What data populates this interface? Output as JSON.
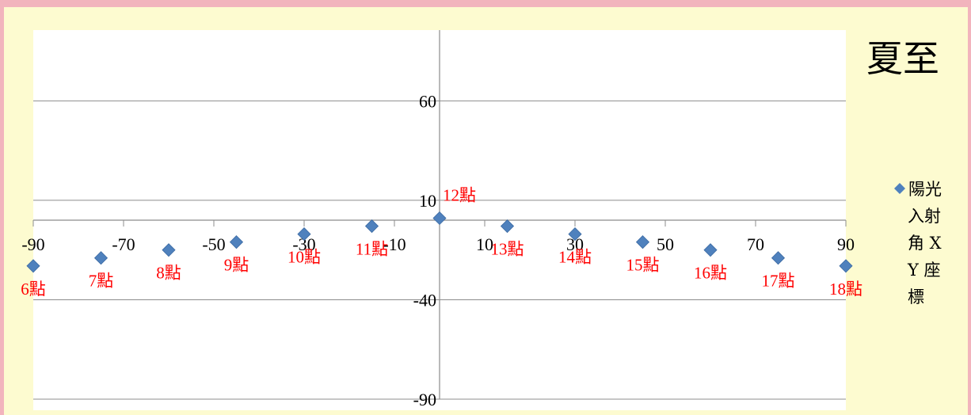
{
  "chart_data": {
    "type": "scatter",
    "title": "夏至",
    "series": [
      {
        "name": "陽光入射角XY座標",
        "points": [
          {
            "x": -90,
            "y": -23,
            "label": "6點"
          },
          {
            "x": -75,
            "y": -19,
            "label": "7點"
          },
          {
            "x": -60,
            "y": -15,
            "label": "8點"
          },
          {
            "x": -45,
            "y": -11,
            "label": "9點"
          },
          {
            "x": -30,
            "y": -7,
            "label": "10點"
          },
          {
            "x": -15,
            "y": -3,
            "label": "11點"
          },
          {
            "x": 0,
            "y": 1,
            "label": "12點"
          },
          {
            "x": 15,
            "y": -3,
            "label": "13點"
          },
          {
            "x": 30,
            "y": -7,
            "label": "14點"
          },
          {
            "x": 45,
            "y": -11,
            "label": "15點"
          },
          {
            "x": 60,
            "y": -15,
            "label": "16點"
          },
          {
            "x": 75,
            "y": -19,
            "label": "17點"
          },
          {
            "x": 90,
            "y": -23,
            "label": "18點"
          }
        ]
      }
    ],
    "xlim": [
      -90,
      90
    ],
    "ylim": [
      -90,
      90
    ],
    "x_tick_labels": [
      "-90",
      "-70",
      "-50",
      "-30",
      "-10",
      "10",
      "30",
      "50",
      "70",
      "90"
    ],
    "y_tick_labels": [
      "60",
      "10",
      "-40",
      "-90"
    ],
    "grid": "horizontal",
    "legend_position": "right",
    "legend_lines": [
      "陽光",
      "入射",
      "角 X",
      "Y 座",
      "標"
    ],
    "marker_color": "#4f81bd",
    "label_color": "#ff0000"
  }
}
